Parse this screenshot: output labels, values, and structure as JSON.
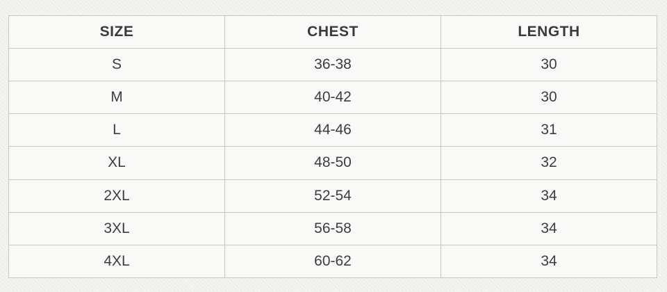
{
  "table": {
    "columns": [
      "SIZE",
      "CHEST",
      "LENGTH"
    ],
    "rows": [
      [
        "S",
        "36-38",
        "30"
      ],
      [
        "M",
        "40-42",
        "30"
      ],
      [
        "L",
        "44-46",
        "31"
      ],
      [
        "XL",
        "48-50",
        "32"
      ],
      [
        "2XL",
        "52-54",
        "34"
      ],
      [
        "3XL",
        "56-58",
        "34"
      ],
      [
        "4XL",
        "60-62",
        "34"
      ]
    ]
  },
  "colors": {
    "page_background": "#f0f0ed",
    "cell_background": "#f9f9f7",
    "border": "#c6c6c3",
    "header_text": "#3a3a3a",
    "cell_text": "#3d3d3d"
  }
}
